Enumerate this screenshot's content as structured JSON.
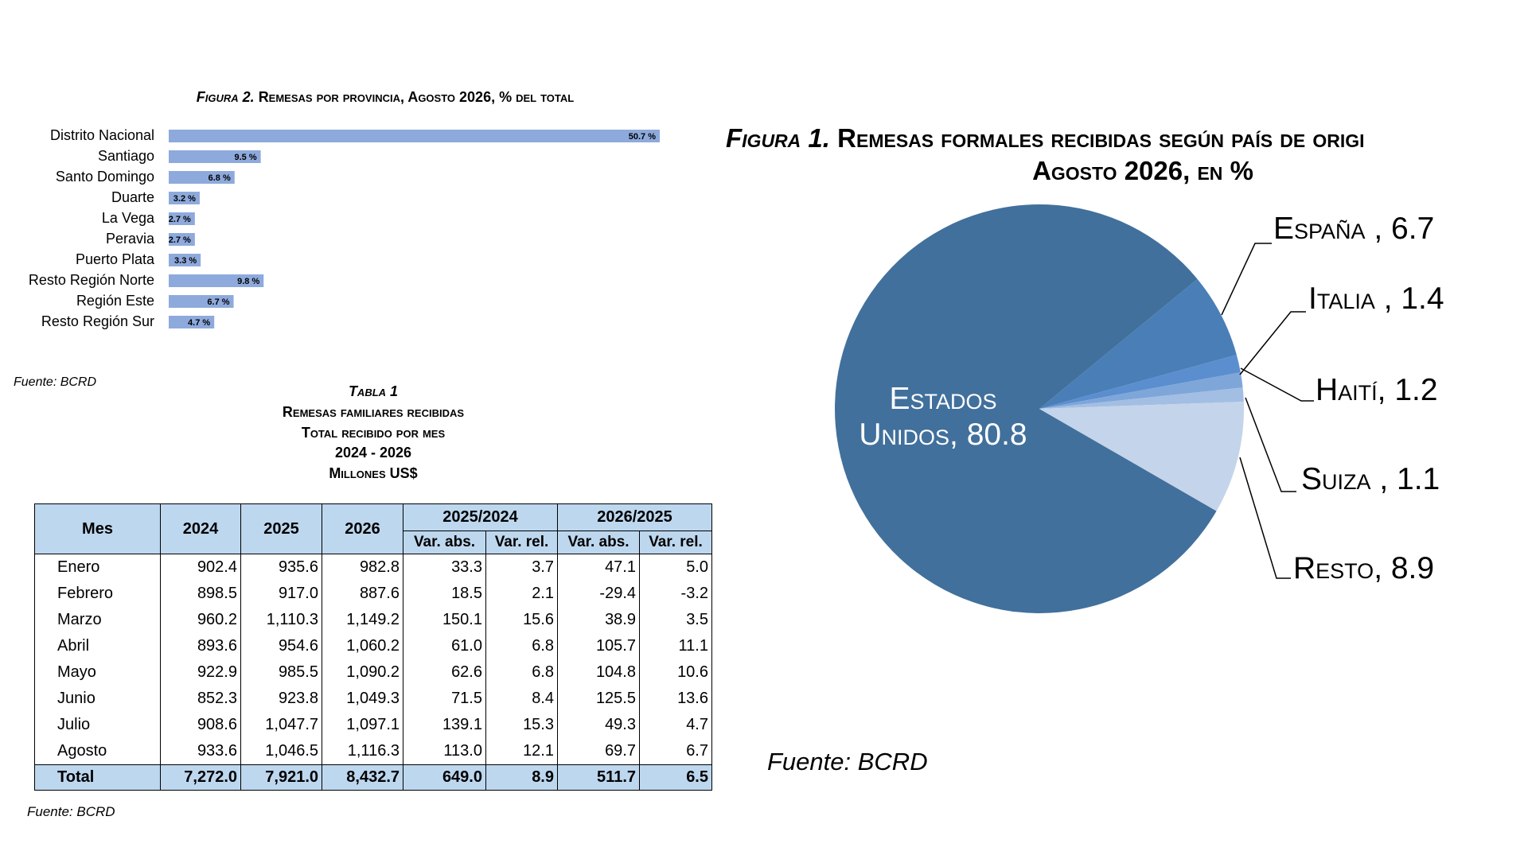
{
  "chart_data": [
    {
      "type": "bar",
      "figure_label": "Figura 2.",
      "title": "Remesas por provincia, Agosto 2026, % del total",
      "categories": [
        "Distrito Nacional",
        "Santiago",
        "Santo Domingo",
        "Duarte",
        "La Vega",
        "Peravia",
        "Puerto Plata",
        "Resto Región Norte",
        "Región Este",
        "Resto Región Sur"
      ],
      "values": [
        50.7,
        9.5,
        6.8,
        3.2,
        2.7,
        2.7,
        3.3,
        9.8,
        6.7,
        4.7
      ],
      "value_labels": [
        "50.7 %",
        "9.5 %",
        "6.8 %",
        "3.2 %",
        "2.7 %",
        "2.7 %",
        "3.3 %",
        "9.8 %",
        "6.7 %",
        "4.7 %"
      ],
      "color": "#8eaadc",
      "source": "Fuente: BCRD"
    },
    {
      "type": "pie",
      "figure_label": "Figura 1.",
      "title": "Remesas formales recibidas según país de origi",
      "subtitle": "Agosto 2026, en %",
      "values": [
        80.8,
        6.7,
        1.4,
        1.2,
        1.1,
        8.9
      ],
      "value_labels": [
        "Estados Unidos, 80.8",
        "España , 6.7",
        "Italia , 1.4",
        "Haití, 1.2",
        "Suiza , 1.1",
        "Resto, 8.9"
      ],
      "colors": [
        "#41709c",
        "#4a7eb6",
        "#5a8ecf",
        "#7ea6d9",
        "#a2bee3",
        "#c4d4ea"
      ],
      "source": "Fuente: BCRD"
    }
  ],
  "table": {
    "caption": [
      "Tabla 1",
      "Remesas familiares recibidas",
      "Total recibido por mes",
      "2024 - 2026",
      "Millones US$"
    ],
    "header": [
      "Mes",
      "2024",
      "2025",
      "2026",
      "2025/2024",
      "2026/2025"
    ],
    "subheader": [
      "Var. abs.",
      "Var. rel.",
      "Var. abs.",
      "Var. rel."
    ],
    "rows": [
      [
        "Enero",
        "902.4",
        "935.6",
        "982.8",
        "33.3",
        "3.7",
        "47.1",
        "5.0"
      ],
      [
        "Febrero",
        "898.5",
        "917.0",
        "887.6",
        "18.5",
        "2.1",
        "-29.4",
        "-3.2"
      ],
      [
        "Marzo",
        "960.2",
        "1,110.3",
        "1,149.2",
        "150.1",
        "15.6",
        "38.9",
        "3.5"
      ],
      [
        "Abril",
        "893.6",
        "954.6",
        "1,060.2",
        "61.0",
        "6.8",
        "105.7",
        "11.1"
      ],
      [
        "Mayo",
        "922.9",
        "985.5",
        "1,090.2",
        "62.6",
        "6.8",
        "104.8",
        "10.6"
      ],
      [
        "Junio",
        "852.3",
        "923.8",
        "1,049.3",
        "71.5",
        "8.4",
        "125.5",
        "13.6"
      ],
      [
        "Julio",
        "908.6",
        "1,047.7",
        "1,097.1",
        "139.1",
        "15.3",
        "49.3",
        "4.7"
      ],
      [
        "Agosto",
        "933.6",
        "1,046.5",
        "1,116.3",
        "113.0",
        "12.1",
        "69.7",
        "6.7"
      ]
    ],
    "total": [
      "Total",
      "7,272.0",
      "7,921.0",
      "8,432.7",
      "649.0",
      "8.9",
      "511.7",
      "6.5"
    ],
    "source": "Fuente: BCRD"
  }
}
